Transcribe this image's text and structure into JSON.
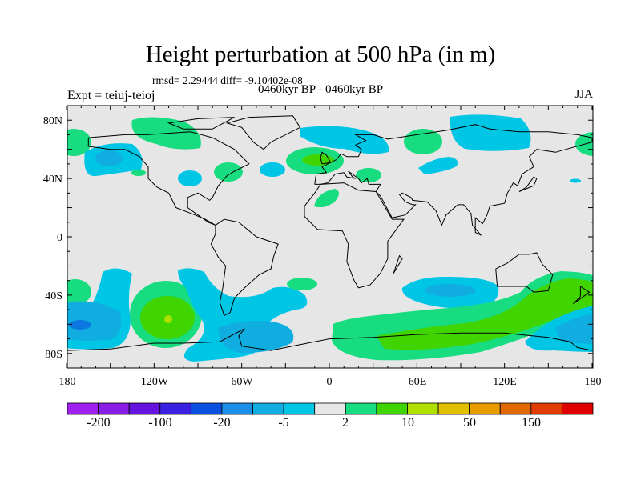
{
  "title": "Height perturbation at 500 hPa (in m)",
  "stats": "rmsd= 2.29444 diff= -9.10402e-08",
  "experiment": "Expt = teiuj-teioj",
  "period": "0460kyr BP - 0460kyr BP",
  "season": "JJA",
  "map": {
    "lat_labels": [
      "80N",
      "40N",
      "0",
      "40S",
      "80S"
    ],
    "lon_labels": [
      "180",
      "120W",
      "60W",
      "0",
      "60E",
      "120E",
      "180"
    ],
    "background_color": "#e6e6e6"
  },
  "colorbar": {
    "levels": [
      -200,
      -150,
      -100,
      -50,
      -20,
      -10,
      -5,
      -2,
      2,
      5,
      10,
      20,
      50,
      100,
      150,
      200
    ],
    "labels": [
      "-200",
      "-100",
      "-20",
      "-5",
      "2",
      "10",
      "50",
      "150"
    ],
    "colors": [
      "#a020f0",
      "#8a1ee6",
      "#6414dc",
      "#3a20e0",
      "#0a50e0",
      "#1a90e8",
      "#10aee0",
      "#00c6e6",
      "#e6e6e6",
      "#18dc80",
      "#40d400",
      "#b0e000",
      "#e0c000",
      "#e89c00",
      "#e06a00",
      "#e03c00",
      "#e00000"
    ]
  }
}
